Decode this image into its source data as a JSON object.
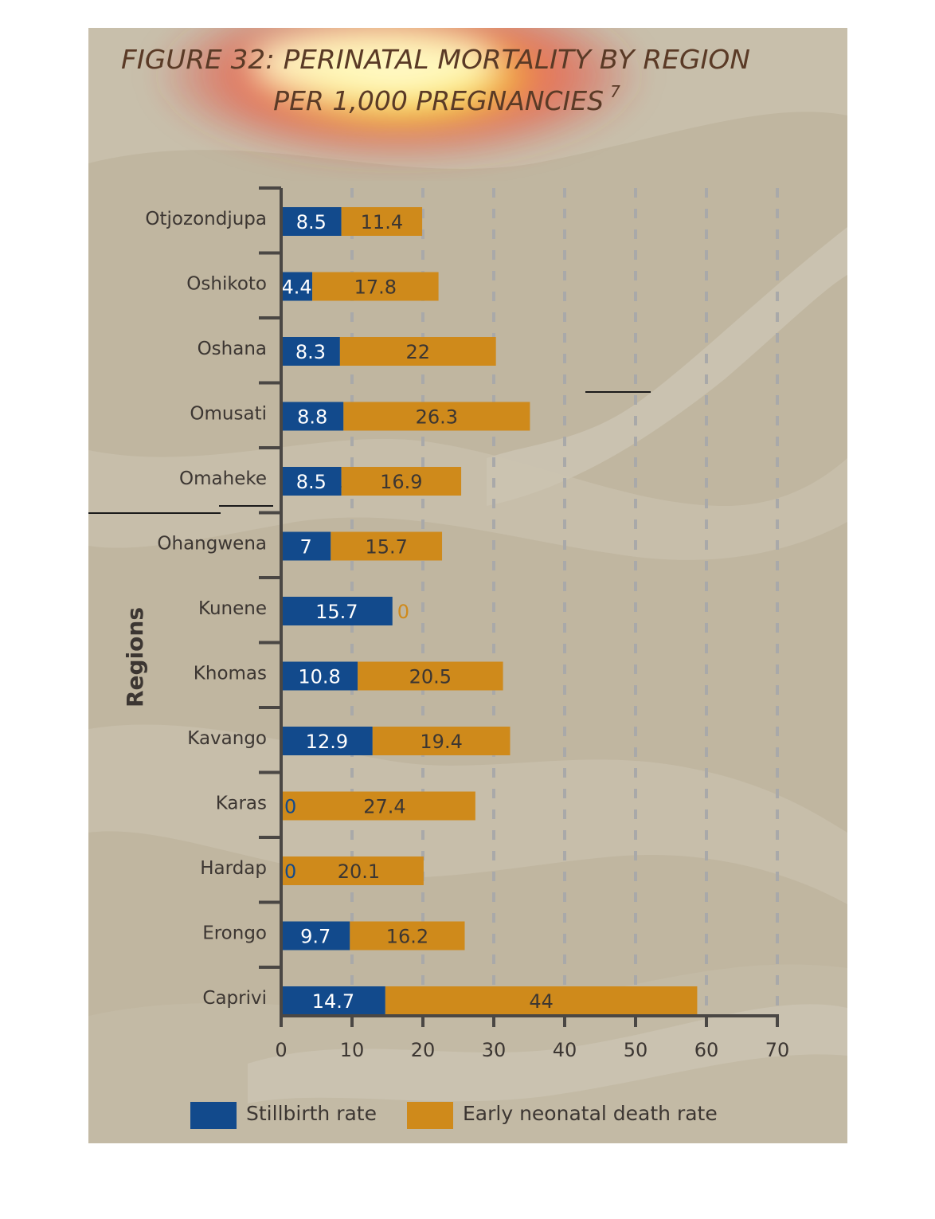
{
  "colors": {
    "stillbirth": "#124a8c",
    "neonatal": "#cf8a1b",
    "axis": "#4a4744",
    "grid": "#a9a9a9",
    "background": "#c0b6a0",
    "title": "#5a3a26"
  },
  "title_lines": [
    "FIGURE 32: PERINATAL MORTALITY BY REGION",
    "PER 1,000 PREGNANCIES"
  ],
  "title_superscript": "7",
  "chart_data": {
    "type": "bar",
    "orientation": "horizontal",
    "stacked": true,
    "title": "FIGURE 32: PERINATAL MORTALITY BY REGION PER 1,000 PREGNANCIES",
    "ylabel": "Regions",
    "xlabel": "",
    "xlim": [
      0,
      70
    ],
    "xticks": [
      0,
      10,
      20,
      30,
      40,
      50,
      60,
      70
    ],
    "grid": "vertical dashed",
    "legend_position": "bottom",
    "categories": [
      "Otjozondjupa",
      "Oshikoto",
      "Oshana",
      "Omusati",
      "Omaheke",
      "Ohangwena",
      "Kunene",
      "Khomas",
      "Kavango",
      "Karas",
      "Hardap",
      "Erongo",
      "Caprivi"
    ],
    "series": [
      {
        "name": "Stillbirth rate",
        "values": [
          8.5,
          4.4,
          8.3,
          8.8,
          8.5,
          7,
          15.7,
          10.8,
          12.9,
          0,
          0,
          9.7,
          14.7
        ]
      },
      {
        "name": "Early neonatal death rate",
        "values": [
          11.4,
          17.8,
          22,
          26.3,
          16.9,
          15.7,
          0,
          20.5,
          19.4,
          27.4,
          20.1,
          16.2,
          44
        ]
      }
    ]
  }
}
